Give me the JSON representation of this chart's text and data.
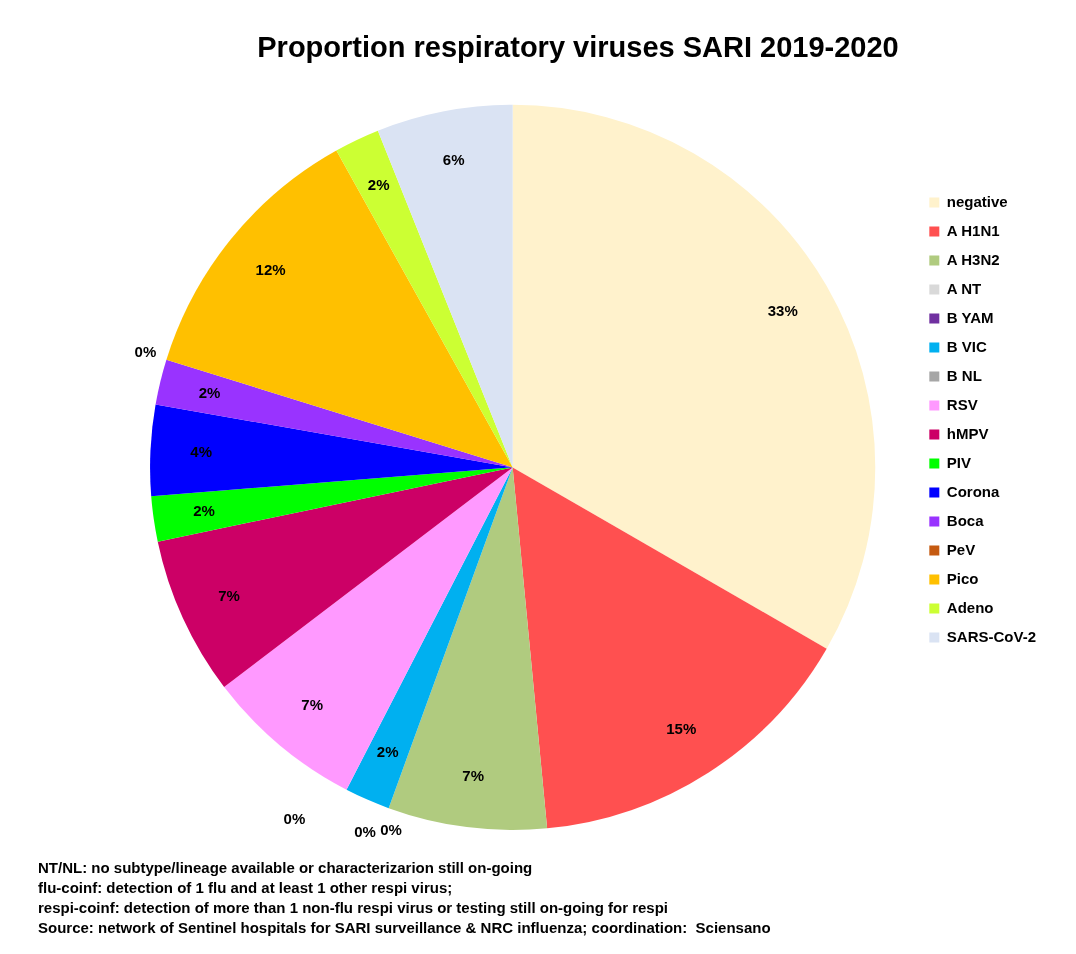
{
  "chart_data": {
    "type": "pie",
    "title": "Proportion respiratory viruses SARI 2019-2020",
    "categories": [
      "negative",
      "A H1N1",
      "A H3N2",
      "A NT",
      "B YAM",
      "B VIC",
      "B NL",
      "RSV",
      "hMPV",
      "PIV",
      "Corona",
      "Boca",
      "PeV",
      "Pico",
      "Adeno",
      "SARS-CoV-2"
    ],
    "values": [
      33,
      15,
      7,
      0,
      0,
      2,
      0,
      7,
      7,
      2,
      4,
      2,
      0,
      12,
      2,
      6
    ],
    "value_labels": [
      "33%",
      "15%",
      "7%",
      "0%",
      "0%",
      "2%",
      "0%",
      "7%",
      "7%",
      "2%",
      "4%",
      "2%",
      "0%",
      "12%",
      "2%",
      "6%"
    ],
    "colors": [
      "#fff2cc",
      "#ff5050",
      "#b0cb7f",
      "#d9d9d9",
      "#7030a0",
      "#00b0f0",
      "#a6a6a6",
      "#ff99ff",
      "#cc0066",
      "#00ff00",
      "#0000ff",
      "#9933ff",
      "#c55a11",
      "#ffc000",
      "#ccff33",
      "#dae3f3"
    ],
    "legend": "right",
    "annotations": [
      "NT/NL: no subtype/lineage available or characterizarion still on-going",
      "flu-coinf: detection of 1 flu and at least 1 other respi virus;",
      "respi-coinf: detection of more than 1 non-flu respi virus or testing still on-going for respi",
      "Source: network of Sentinel hospitals for SARI surveillance & NRC influenza; coordination:  Sciensano"
    ]
  }
}
